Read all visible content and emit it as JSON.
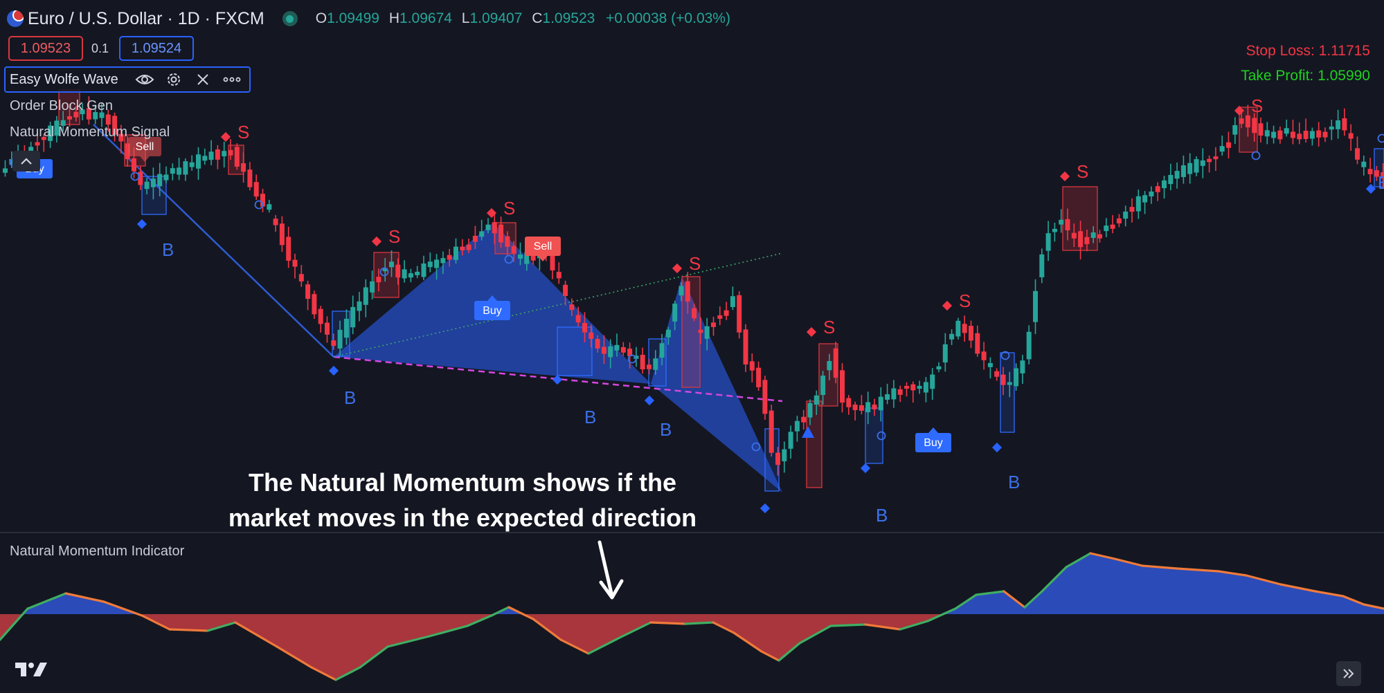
{
  "header": {
    "symbol_title": "Euro / U.S. Dollar · 1D · FXCM",
    "ohlc": {
      "o_label": "O",
      "o": "1.09499",
      "h_label": "H",
      "h": "1.09674",
      "l_label": "L",
      "l": "1.09407",
      "c_label": "C",
      "c": "1.09523",
      "change": "+0.00038 (+0.03%)"
    }
  },
  "trade": {
    "sell_price": "1.09523",
    "spread": "0.1",
    "buy_price": "1.09524"
  },
  "indicators": [
    "Easy Wolfe Wave",
    "Order Block Gen",
    "Natural Momentum Signal"
  ],
  "levels": {
    "stop_loss": "Stop Loss: 1.11715",
    "take_profit": "Take Profit: 1.05990"
  },
  "annotation": {
    "line1": "The Natural Momentum shows if the",
    "line2": "market moves in the expected direction"
  },
  "lower_panel": {
    "title": "Natural Momentum Indicator"
  },
  "labels": {
    "s": "S",
    "b": "B",
    "buy": "Buy",
    "sell": "Sell"
  },
  "colors": {
    "up": "#26a69a",
    "down": "#f23645",
    "accent": "#2962ff",
    "sell_tag": "#f05252",
    "buy_tag": "#2f6bff"
  },
  "icons": [
    "eye-icon",
    "gear-icon",
    "close-icon",
    "more-icon",
    "chevron-up-icon",
    "tradingview-logo",
    "expand-icon"
  ]
}
